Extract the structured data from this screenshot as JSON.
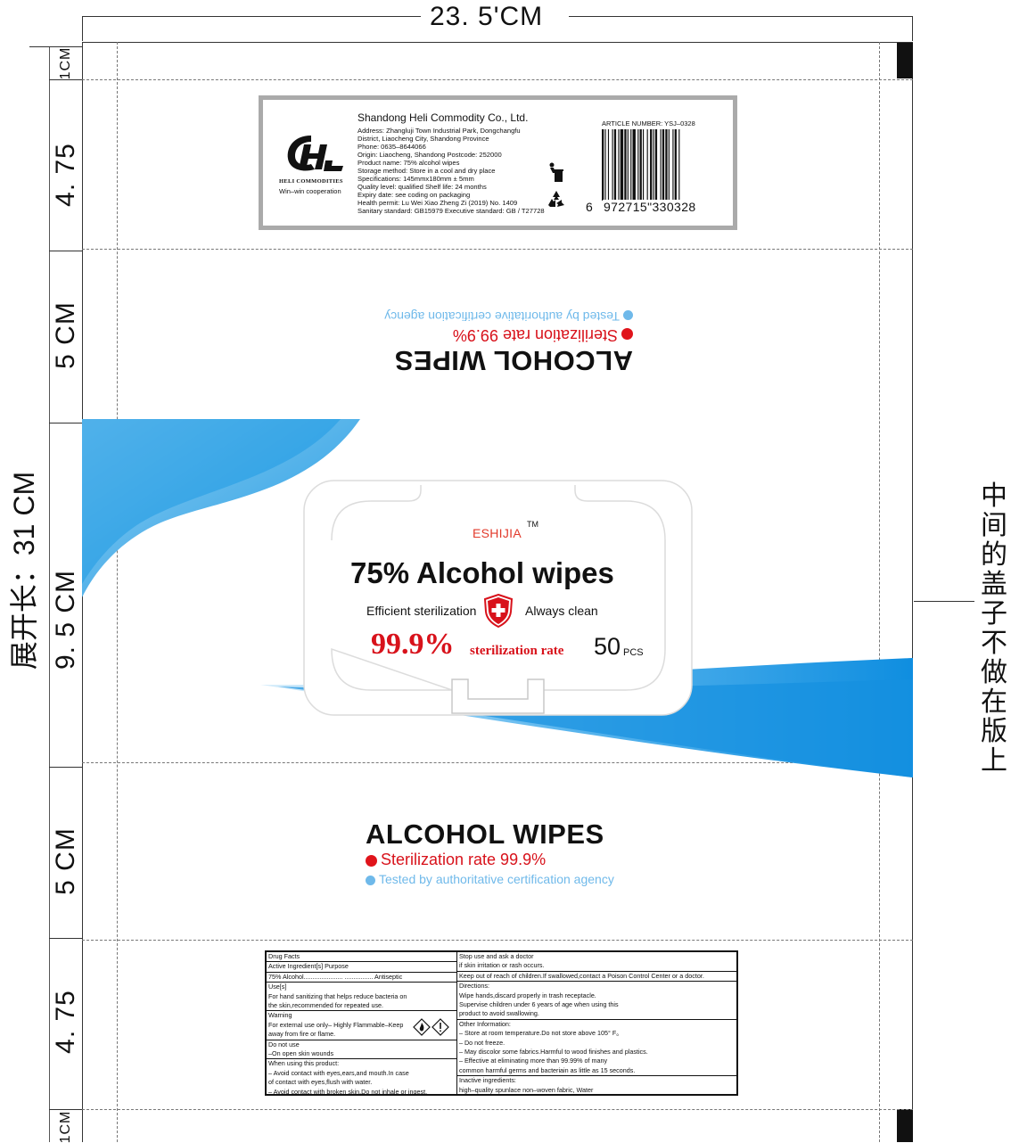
{
  "dimensions": {
    "width_label": "23. 5'CM",
    "total_length_label": "展开长：31 CM",
    "segments": [
      "1CM",
      "4. 75",
      "5 CM",
      "9. 5 CM",
      "5 CM",
      "4. 75",
      "1CM"
    ],
    "note_right": "中间的盖子不做在版上"
  },
  "info_panel": {
    "brand_en": "HELI COMMODITIES",
    "slogan": "Win–win cooperation",
    "company": "Shandong Heli Commodity Co., Ltd.",
    "lines": [
      "Address: Zhangluji Town Industrial Park, Dongchangfu",
      "District, Liaocheng City, Shandong Province",
      "Phone: 0635–8644066",
      "Origin: Liaocheng, Shandong    Postcode: 252000",
      "Product name: 75% alcohol wipes",
      "Storage method: Store in a cool and dry place",
      "Specifications: 145mmx180mm ± 5mm",
      "Quality level: qualified      Shelf life: 24 months",
      "Expiry date: see coding on packaging",
      "Health permit: Lu Wei Xiao Zheng Zi (2019) No. 1409",
      "Sanitary standard: GB15979    Executive standard: GB / T27728"
    ],
    "article_number": "ARTICLE NUMBER: YSJ–0328",
    "barcode_lead": "6",
    "barcode_digits": "972715\"330328"
  },
  "flipped_panel": {
    "title": "ALCOHOL WIPES",
    "line1": "Sterilization rate 99.9%",
    "line2": "Tested by authoritative certification agency"
  },
  "front_label": {
    "brand": "ESHIJIA",
    "tm": "TM",
    "title": "75% Alcohol wipes",
    "left_claim": "Efficient sterilization",
    "right_claim": "Always clean",
    "rate_big": "99.9%",
    "rate_text": "sterilization  rate",
    "count_num": "50",
    "count_unit": "PCS"
  },
  "lower_panel": {
    "title": "ALCOHOL WIPES",
    "line1": "Sterilization rate 99.9%",
    "line2": "Tested by authoritative certification agency"
  },
  "facts_left": [
    "Drug Facts",
    "Active Ingredient[s] Purpose",
    "75% Alcohol......................  ................ Antiseptic",
    "Use[s]",
    "For hand sanitizing that helps reduce bacteria on",
    "the skin,recommended for repeated use.",
    "Warning",
    "For external use only– Highly Flammable–Keep",
    "away from fire or flame.",
    "Do not use",
    "–On open skin wounds",
    "When using this product:",
    "– Avoid contact with eyes,ears,and mouth.In case",
    "of contact with eyes,flush with water.",
    "– Avoid contact with broken skin.Do not inhale or ingest."
  ],
  "facts_right": [
    "Stop use and ask a doctor",
    "if skin irritation or rash occurs.",
    "Keep out of reach of children.If swallowed,contact a Poison Control Center or a doctor.",
    "Directions:",
    "Wipe hands,discard properly in trash receptacle.",
    "Supervise children under 6 years of age when using this",
    "product to avoid swallowing.",
    "Other Information:",
    "– Store at room temperature.Do not store above 105°  F。",
    "– Do not freeze.",
    "– May discolor some fabrics.Harmful to wood finishes and plastics.",
    "– Effective at eliminating more than 99.99% of many",
    "common harmful germs and bacteriain as little as 15 seconds.",
    "Inactive ingredients:",
    "high–quality spunlace non–woven fabric, Water"
  ],
  "colors": {
    "accent_blue": "#1a9be0",
    "light_blue": "#6fb9ea",
    "red": "#d8121b",
    "brand_red": "#e23a2b",
    "panel_gray": "#aaaaaa"
  }
}
